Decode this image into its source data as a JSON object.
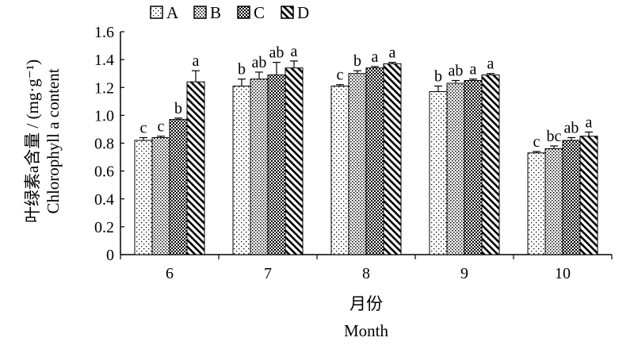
{
  "chart_data": {
    "type": "bar",
    "categories": [
      "6",
      "7",
      "8",
      "9",
      "10"
    ],
    "series": [
      {
        "name": "A",
        "values": [
          0.82,
          1.21,
          1.21,
          1.17,
          0.73
        ],
        "errors": [
          0.02,
          0.05,
          0.01,
          0.04,
          0.01
        ],
        "labels": [
          "c",
          "b",
          "c",
          "b",
          "c"
        ],
        "pattern": "sparse-dots"
      },
      {
        "name": "B",
        "values": [
          0.84,
          1.26,
          1.3,
          1.23,
          0.76
        ],
        "errors": [
          0.01,
          0.05,
          0.02,
          0.02,
          0.02
        ],
        "labels": [
          "c",
          "ab",
          "b",
          "ab",
          "bc"
        ],
        "pattern": "fine-dots"
      },
      {
        "name": "C",
        "values": [
          0.97,
          1.29,
          1.34,
          1.25,
          0.82
        ],
        "errors": [
          0.01,
          0.09,
          0.01,
          0.01,
          0.02
        ],
        "labels": [
          "b",
          "ab",
          "a",
          "a",
          "ab"
        ],
        "pattern": "checker"
      },
      {
        "name": "D",
        "values": [
          1.24,
          1.34,
          1.37,
          1.29,
          0.85
        ],
        "errors": [
          0.08,
          0.05,
          0.01,
          0.01,
          0.03
        ],
        "labels": [
          "a",
          "a",
          "a",
          "a",
          "a"
        ],
        "pattern": "diagonal"
      }
    ],
    "ylabel_cn": "叶绿素a含量 / (mg·g⁻¹)",
    "ylabel_en": "Chlorophyll a content",
    "xlabel_cn": "月份",
    "xlabel_en": "Month",
    "ylim": [
      0,
      1.6
    ],
    "yticks": [
      "0",
      "0.2",
      "0.4",
      "0.6",
      "0.8",
      "1.0",
      "1.2",
      "1.4",
      "1.6"
    ],
    "ytick_values": [
      0,
      0.2,
      0.4,
      0.6,
      0.8,
      1.0,
      1.2,
      1.4,
      1.6
    ],
    "legend_position": "top",
    "grid": false
  }
}
